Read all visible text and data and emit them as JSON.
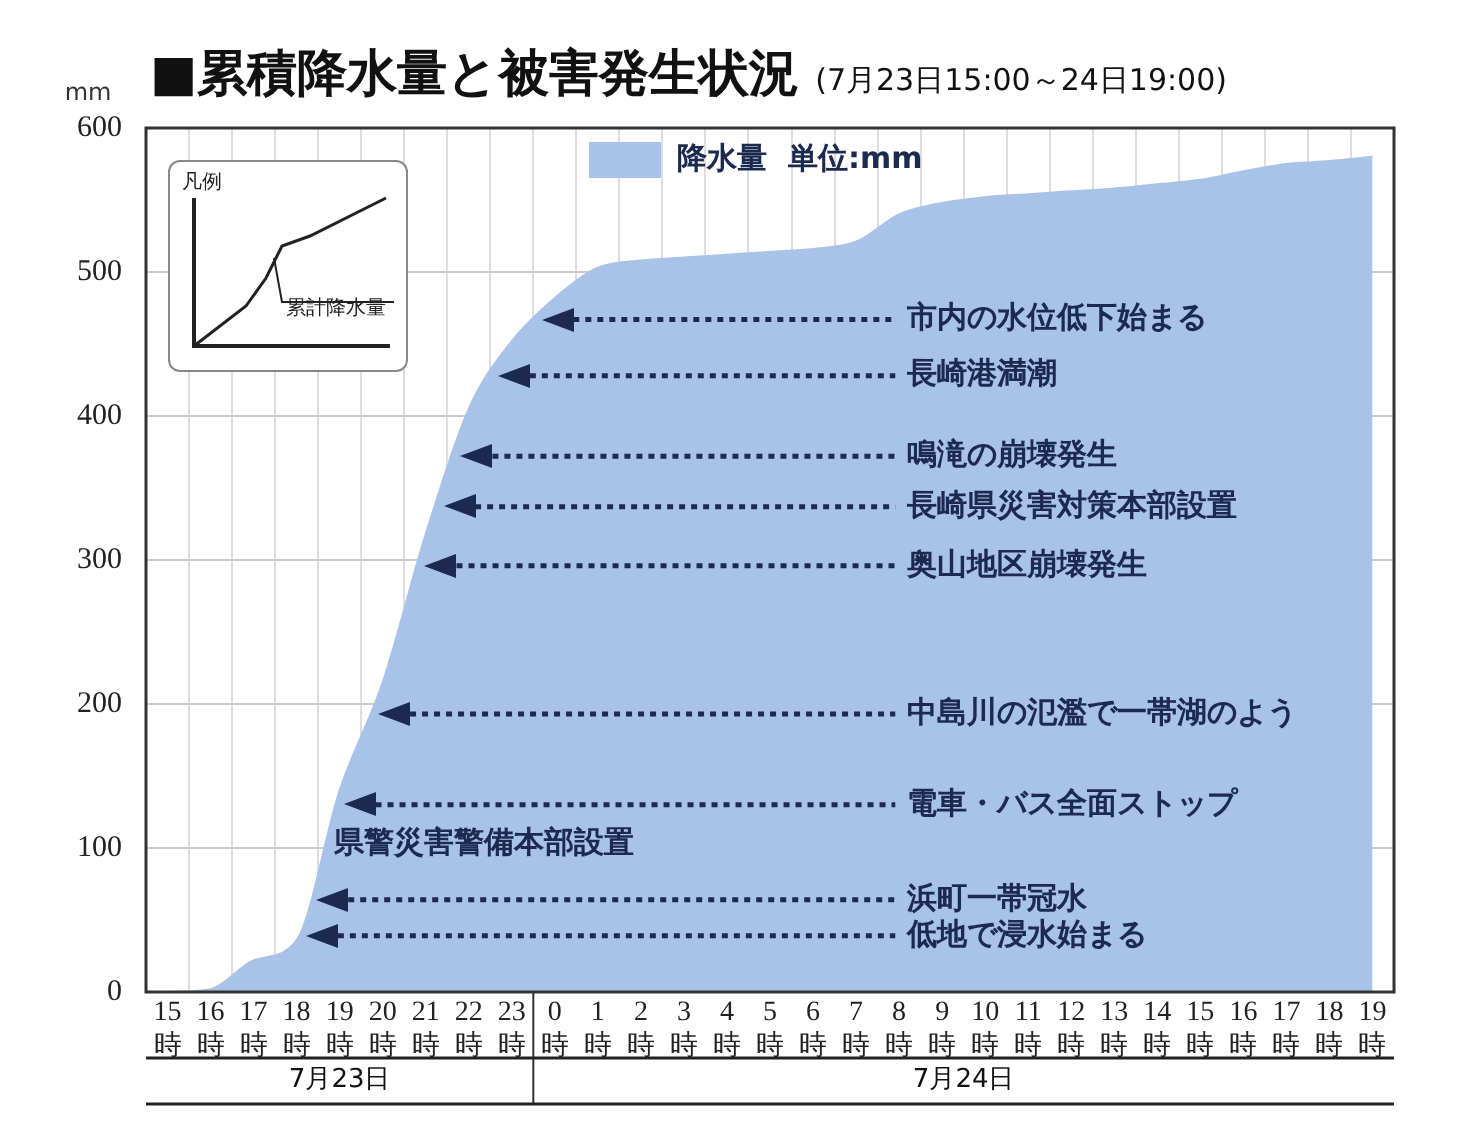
{
  "chart_data": {
    "type": "area",
    "title": "■累積降水量と被害発生状況",
    "subtitle": "(7月23日15:00～24日19:00)",
    "ylabel": "mm",
    "categories": [
      "15時",
      "16時",
      "17時",
      "18時",
      "19時",
      "20時",
      "21時",
      "22時",
      "23時",
      "0時",
      "1時",
      "2時",
      "3時",
      "4時",
      "5時",
      "6時",
      "7時",
      "8時",
      "9時",
      "10時",
      "11時",
      "12時",
      "13時",
      "14時",
      "15時",
      "16時",
      "17時",
      "18時",
      "19時"
    ],
    "series": [
      {
        "name": "降水量  単位:mm",
        "color": "#a9c3e8",
        "values": [
          0,
          2,
          22,
          36,
          140,
          215,
          318,
          405,
          452,
          482,
          503,
          508,
          510,
          512,
          514,
          516,
          521,
          540,
          548,
          552,
          554,
          556,
          558,
          561,
          564,
          570,
          575,
          577,
          580
        ]
      }
    ],
    "ylim": [
      0,
      600
    ],
    "yticks": [
      0,
      100,
      200,
      300,
      400,
      500,
      600
    ],
    "grid": true,
    "legend": "top",
    "ref_lines": [
      {
        "axis": "y",
        "value": 467,
        "label": "市内の水位低下始まる",
        "color": "#1c2a50",
        "line_style": "dotted"
      },
      {
        "axis": "y",
        "value": 428,
        "label": "長崎港満潮",
        "color": "#1c2a50",
        "line_style": "dotted"
      },
      {
        "axis": "y",
        "value": 372,
        "label": "鳴滝の崩壊発生",
        "color": "#1c2a50",
        "line_style": "dotted"
      },
      {
        "axis": "y",
        "value": 337,
        "label": "長崎県災害対策本部設置",
        "color": "#1c2a50",
        "line_style": "dotted"
      },
      {
        "axis": "y",
        "value": 296,
        "label": "奥山地区崩壊発生",
        "color": "#1c2a50",
        "line_style": "dotted"
      },
      {
        "axis": "y",
        "value": 193,
        "label": "中島川の氾濫で一帯湖のよう",
        "color": "#1c2a50",
        "line_style": "dotted"
      },
      {
        "axis": "y",
        "value": 130,
        "label": "電車・バス全面ストップ",
        "color": "#1c2a50",
        "line_style": "dotted"
      },
      {
        "axis": "y",
        "value": 64,
        "label": "浜町一帯冠水",
        "color": "#1c2a50",
        "line_style": "dotted"
      },
      {
        "axis": "y",
        "value": 39,
        "label": "低地で浸水始まる",
        "color": "#1c2a50",
        "line_style": "dotted"
      }
    ],
    "annotations": [
      "凡例",
      "累計降水量",
      "県警災害警備本部設置",
      "7月23日",
      "7月24日"
    ]
  }
}
